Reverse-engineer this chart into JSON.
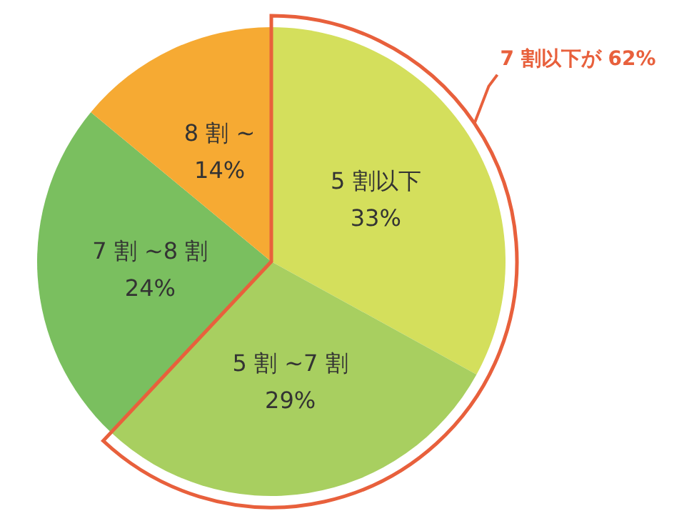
{
  "chart_data": {
    "type": "pie",
    "categories": [
      "5 割以下",
      "5 割 ~7 割",
      "7 割 ~8 割",
      "8 割 ~"
    ],
    "values": [
      33,
      29,
      24,
      14
    ],
    "colors": [
      "#d4df5c",
      "#a8cf60",
      "#7abf5f",
      "#f6aa33"
    ],
    "value_labels": [
      "33%",
      "29%",
      "24%",
      "14%"
    ],
    "annotations": [
      "7 割以下が 62%"
    ]
  }
}
